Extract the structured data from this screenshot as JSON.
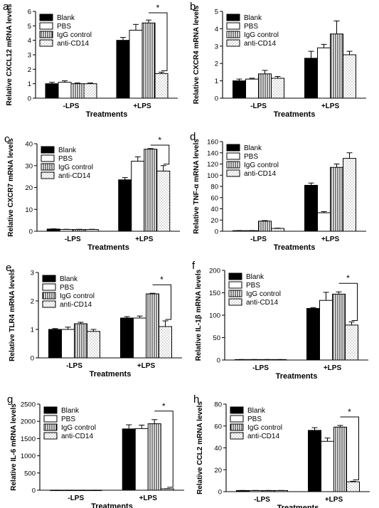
{
  "treatment_names": [
    "Blank",
    "PBS",
    "IgG control",
    "anti-CD14"
  ],
  "colors": {
    "bar_stroke": "#000000",
    "blank_fill": "#000000",
    "pbs_fill": "#ffffff",
    "background": "#ffffff"
  },
  "chart_data": [
    {
      "type": "bar",
      "panel_letter": "a",
      "title": "",
      "xlabel": "Treatments",
      "ylabel": "Relative CXCL12 mRNA levels",
      "categories": [
        "-LPS",
        "+LPS"
      ],
      "ylim": [
        0,
        6
      ],
      "yticks": [
        0,
        1,
        2,
        3,
        4,
        5,
        6
      ],
      "ytick_labels": [
        "0",
        "1",
        "2",
        "3",
        "4",
        "5",
        "6"
      ],
      "legend": "top-left",
      "grid": false,
      "series": [
        {
          "name": "Blank",
          "values": [
            1.0,
            4.0
          ],
          "errors": [
            0.1,
            0.2
          ]
        },
        {
          "name": "PBS",
          "values": [
            1.1,
            4.7
          ],
          "errors": [
            0.1,
            0.4
          ]
        },
        {
          "name": "IgG control",
          "values": [
            1.0,
            5.2
          ],
          "errors": [
            0.05,
            0.2
          ]
        },
        {
          "name": "anti-CD14",
          "values": [
            1.0,
            1.7
          ],
          "errors": [
            0.05,
            0.1
          ]
        }
      ],
      "significance": [
        {
          "label": "*",
          "category": 1,
          "from_series": 2,
          "to_series": 3
        }
      ]
    },
    {
      "type": "bar",
      "panel_letter": "b",
      "title": "",
      "xlabel": "Treatments",
      "ylabel": "Relative CXCR4 mRNA levels",
      "categories": [
        "-LPS",
        "+LPS"
      ],
      "ylim": [
        0,
        5
      ],
      "yticks": [
        0,
        1,
        2,
        3,
        4,
        5
      ],
      "ytick_labels": [
        "0",
        "1",
        "2",
        "3",
        "4",
        "5"
      ],
      "legend": "top-left",
      "grid": false,
      "series": [
        {
          "name": "Blank",
          "values": [
            1.0,
            2.3
          ],
          "errors": [
            0.1,
            0.4
          ]
        },
        {
          "name": "PBS",
          "values": [
            1.1,
            2.9
          ],
          "errors": [
            0.05,
            0.2
          ]
        },
        {
          "name": "IgG control",
          "values": [
            1.4,
            3.7
          ],
          "errors": [
            0.2,
            0.75
          ]
        },
        {
          "name": "anti-CD14",
          "values": [
            1.15,
            2.5
          ],
          "errors": [
            0.1,
            0.2
          ]
        }
      ],
      "significance": []
    },
    {
      "type": "bar",
      "panel_letter": "c",
      "title": "",
      "xlabel": "Treatments",
      "ylabel": "Relative CXCR7 mRNA levels",
      "categories": [
        "-LPS",
        "+LPS"
      ],
      "ylim": [
        0,
        40
      ],
      "yticks": [
        0,
        10,
        20,
        30,
        40
      ],
      "ytick_labels": [
        "0",
        "10",
        "20",
        "30",
        "40"
      ],
      "legend": "top-left",
      "grid": false,
      "series": [
        {
          "name": "Blank",
          "values": [
            1.0,
            23.5
          ],
          "errors": [
            0.1,
            1.0
          ]
        },
        {
          "name": "PBS",
          "values": [
            0.8,
            32.0
          ],
          "errors": [
            0.1,
            2.0
          ]
        },
        {
          "name": "IgG control",
          "values": [
            0.8,
            37.5
          ],
          "errors": [
            0.1,
            0.3
          ]
        },
        {
          "name": "anti-CD14",
          "values": [
            0.8,
            27.5
          ],
          "errors": [
            0.1,
            2.5
          ]
        }
      ],
      "significance": [
        {
          "label": "*",
          "category": 1,
          "from_series": 2,
          "to_series": 3
        }
      ]
    },
    {
      "type": "bar",
      "panel_letter": "d",
      "title": "",
      "xlabel": "Treatments",
      "ylabel": "Relative TNF-α mRNA levels",
      "categories": [
        "-LPS",
        "+LPS"
      ],
      "ylim": [
        0,
        160
      ],
      "yticks": [
        0,
        20,
        40,
        60,
        80,
        100,
        120,
        140,
        160
      ],
      "ytick_labels": [
        "0",
        "20",
        "40",
        "60",
        "80",
        "100",
        "120",
        "140",
        "160"
      ],
      "legend": "top-left",
      "grid": false,
      "series": [
        {
          "name": "Blank",
          "values": [
            1.0,
            82.0
          ],
          "errors": [
            0.2,
            4.0
          ]
        },
        {
          "name": "PBS",
          "values": [
            1.0,
            33.0
          ],
          "errors": [
            0.2,
            2.0
          ]
        },
        {
          "name": "IgG control",
          "values": [
            18.0,
            114.0
          ],
          "errors": [
            1.0,
            6.0
          ]
        },
        {
          "name": "anti-CD14",
          "values": [
            5.0,
            130.0
          ],
          "errors": [
            0.5,
            10.0
          ]
        }
      ],
      "significance": []
    },
    {
      "type": "bar",
      "panel_letter": "e",
      "title": "",
      "xlabel": "Treatments",
      "ylabel": "Relative TLR4 mRNA levels",
      "categories": [
        "-LPS",
        "+LPS"
      ],
      "ylim": [
        0,
        3
      ],
      "yticks": [
        0,
        1,
        2,
        3
      ],
      "ytick_labels": [
        "0",
        "1",
        "2",
        "3"
      ],
      "legend": "top-left",
      "grid": false,
      "series": [
        {
          "name": "Blank",
          "values": [
            1.0,
            1.4
          ],
          "errors": [
            0.03,
            0.05
          ]
        },
        {
          "name": "PBS",
          "values": [
            1.0,
            1.4
          ],
          "errors": [
            0.08,
            0.07
          ]
        },
        {
          "name": "IgG control",
          "values": [
            1.2,
            2.25
          ],
          "errors": [
            0.05,
            0.02
          ]
        },
        {
          "name": "anti-CD14",
          "values": [
            0.93,
            1.1
          ],
          "errors": [
            0.07,
            0.2
          ]
        }
      ],
      "significance": [
        {
          "label": "*",
          "category": 1,
          "from_series": 2,
          "to_series": 3
        }
      ]
    },
    {
      "type": "bar",
      "panel_letter": "f",
      "title": "",
      "xlabel": "Treatments",
      "ylabel": "Relative IL-1β mRNA levels",
      "categories": [
        "-LPS",
        "+LPS"
      ],
      "ylim": [
        0,
        200
      ],
      "yticks": [
        0,
        50,
        100,
        150,
        200
      ],
      "ytick_labels": [
        "0",
        "50",
        "100",
        "150",
        "200"
      ],
      "legend": "top-left",
      "grid": false,
      "series": [
        {
          "name": "Blank",
          "values": [
            1.0,
            115.0
          ],
          "errors": [
            0.1,
            2.0
          ]
        },
        {
          "name": "PBS",
          "values": [
            1.0,
            133.0
          ],
          "errors": [
            0.1,
            18.0
          ]
        },
        {
          "name": "IgG control",
          "values": [
            1.0,
            147.0
          ],
          "errors": [
            0.1,
            5.0
          ]
        },
        {
          "name": "anti-CD14",
          "values": [
            1.0,
            78.0
          ],
          "errors": [
            0.1,
            7.0
          ]
        }
      ],
      "significance": [
        {
          "label": "*",
          "category": 1,
          "from_series": 2,
          "to_series": 3
        }
      ]
    },
    {
      "type": "bar",
      "panel_letter": "g",
      "title": "",
      "xlabel": "Treatments",
      "ylabel": "Relative IL-6 mRNA levels",
      "categories": [
        "-LPS",
        "+LPS"
      ],
      "ylim": [
        0,
        2500
      ],
      "yticks": [
        0,
        500,
        1000,
        1500,
        2000,
        2500
      ],
      "ytick_labels": [
        "0",
        "500",
        "1000",
        "1500",
        "2000",
        "2500"
      ],
      "legend": "top-left",
      "grid": false,
      "series": [
        {
          "name": "Blank",
          "values": [
            1.0,
            1780.0
          ],
          "errors": [
            0.5,
            120.0
          ]
        },
        {
          "name": "PBS",
          "values": [
            1.0,
            1790.0
          ],
          "errors": [
            0.5,
            100.0
          ]
        },
        {
          "name": "IgG control",
          "values": [
            1.0,
            1930.0
          ],
          "errors": [
            0.5,
            120.0
          ]
        },
        {
          "name": "anti-CD14",
          "values": [
            1.0,
            40.0
          ],
          "errors": [
            0.5,
            5.0
          ]
        }
      ],
      "significance": [
        {
          "label": "*",
          "category": 1,
          "from_series": 2,
          "to_series": 3
        }
      ]
    },
    {
      "type": "bar",
      "panel_letter": "h",
      "title": "",
      "xlabel": "Treatments",
      "ylabel": "Relative CCL2 mRNA levels",
      "categories": [
        "-LPS",
        "+LPS"
      ],
      "ylim": [
        0,
        80
      ],
      "yticks": [
        0,
        20,
        40,
        60,
        80
      ],
      "ytick_labels": [
        "0",
        "20",
        "40",
        "60",
        "80"
      ],
      "legend": "top-left",
      "grid": false,
      "series": [
        {
          "name": "Blank",
          "values": [
            1.0,
            56.0
          ],
          "errors": [
            0.1,
            2.5
          ]
        },
        {
          "name": "PBS",
          "values": [
            1.0,
            46.0
          ],
          "errors": [
            0.1,
            3.0
          ]
        },
        {
          "name": "IgG control",
          "values": [
            1.0,
            59.0
          ],
          "errors": [
            0.1,
            1.5
          ]
        },
        {
          "name": "anti-CD14",
          "values": [
            1.0,
            9.0
          ],
          "errors": [
            0.1,
            0.5
          ]
        }
      ],
      "significance": [
        {
          "label": "*",
          "category": 1,
          "from_series": 2,
          "to_series": 3
        }
      ]
    }
  ]
}
